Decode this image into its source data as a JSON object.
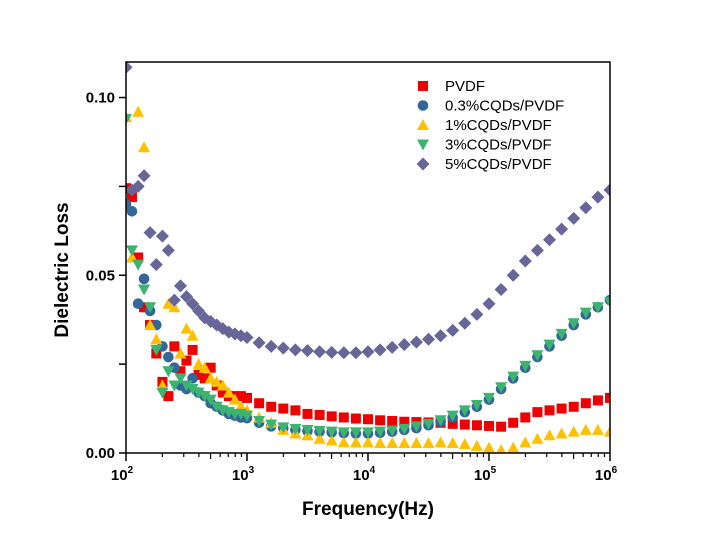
{
  "chart_data": {
    "type": "scatter",
    "title": "",
    "xlabel": "Frequency(Hz)",
    "ylabel": "Dielectric Loss",
    "xscale": "log",
    "xlim": [
      100,
      1000000
    ],
    "ylim": [
      0,
      0.11
    ],
    "xticks": [
      {
        "value": 100,
        "base": "10",
        "exp": "2"
      },
      {
        "value": 1000,
        "base": "10",
        "exp": "3"
      },
      {
        "value": 10000,
        "base": "10",
        "exp": "4"
      },
      {
        "value": 100000,
        "base": "10",
        "exp": "5"
      },
      {
        "value": 1000000,
        "base": "10",
        "exp": "6"
      }
    ],
    "yticks": [
      {
        "value": 0.0,
        "label": "0.00"
      },
      {
        "value": 0.025,
        "label": ""
      },
      {
        "value": 0.05,
        "label": "0.05"
      },
      {
        "value": 0.075,
        "label": ""
      },
      {
        "value": 0.1,
        "label": "0.10"
      }
    ],
    "legend_position": "top-right",
    "x": [
      100,
      112,
      126,
      141,
      158,
      178,
      200,
      224,
      251,
      282,
      316,
      355,
      398,
      447,
      501,
      562,
      631,
      708,
      794,
      891,
      1000,
      1259,
      1585,
      1995,
      2512,
      3162,
      3981,
      5012,
      6310,
      7943,
      10000,
      12589,
      15849,
      19953,
      25119,
      31623,
      39811,
      50119,
      63096,
      79433,
      100000,
      125893,
      158489,
      199526,
      251189,
      316228,
      398107,
      501187,
      630957,
      794328,
      1000000
    ],
    "series": [
      {
        "name": "PVDF",
        "color": "#ee0000",
        "marker": "square",
        "values": [
          0.0745,
          0.072,
          0.055,
          0.041,
          0.036,
          0.028,
          0.02,
          0.016,
          0.03,
          0.023,
          0.026,
          0.029,
          0.022,
          0.021,
          0.024,
          0.019,
          0.017,
          0.016,
          0.016,
          0.016,
          0.0155,
          0.014,
          0.013,
          0.0125,
          0.012,
          0.011,
          0.0107,
          0.0103,
          0.01,
          0.0097,
          0.0095,
          0.0092,
          0.009,
          0.0088,
          0.0087,
          0.0086,
          0.0085,
          0.0082,
          0.008,
          0.0078,
          0.0076,
          0.0074,
          0.0085,
          0.01,
          0.0115,
          0.012,
          0.0125,
          0.013,
          0.014,
          0.0148,
          0.0155
        ]
      },
      {
        "name": "0.3%CQDs/PVDF",
        "color": "#336699",
        "marker": "circle",
        "values": [
          0.07,
          0.068,
          0.042,
          0.049,
          0.04,
          0.036,
          0.03,
          0.027,
          0.024,
          0.019,
          0.018,
          0.021,
          0.017,
          0.016,
          0.014,
          0.013,
          0.012,
          0.011,
          0.0105,
          0.01,
          0.0098,
          0.0085,
          0.0075,
          0.007,
          0.0065,
          0.0062,
          0.006,
          0.0058,
          0.0056,
          0.0055,
          0.0055,
          0.0057,
          0.006,
          0.0065,
          0.007,
          0.0078,
          0.0088,
          0.01,
          0.0115,
          0.013,
          0.015,
          0.018,
          0.021,
          0.024,
          0.027,
          0.03,
          0.033,
          0.036,
          0.039,
          0.041,
          0.043
        ]
      },
      {
        "name": "1%CQDs/PVDF",
        "color": "#ffc000",
        "marker": "triangle-up",
        "values": [
          0.0945,
          0.055,
          0.096,
          0.086,
          0.036,
          0.032,
          0.019,
          0.042,
          0.041,
          0.028,
          0.035,
          0.033,
          0.025,
          0.024,
          0.021,
          0.02,
          0.019,
          0.017,
          0.015,
          0.013,
          0.012,
          0.01,
          0.0085,
          0.0065,
          0.0055,
          0.005,
          0.004,
          0.0035,
          0.003,
          0.003,
          0.003,
          0.0028,
          0.0028,
          0.0028,
          0.0028,
          0.0028,
          0.003,
          0.0028,
          0.0025,
          0.002,
          0.0015,
          0.0008,
          0.0015,
          0.003,
          0.004,
          0.005,
          0.0055,
          0.006,
          0.0065,
          0.0065,
          0.006
        ]
      },
      {
        "name": "3%CQDs/PVDF",
        "color": "#3cb371",
        "marker": "triangle-down",
        "values": [
          0.094,
          0.057,
          0.053,
          0.046,
          0.041,
          0.029,
          0.017,
          0.023,
          0.019,
          0.021,
          0.019,
          0.018,
          0.017,
          0.016,
          0.015,
          0.013,
          0.012,
          0.0115,
          0.011,
          0.011,
          0.0105,
          0.009,
          0.008,
          0.0072,
          0.0068,
          0.0065,
          0.0062,
          0.006,
          0.0058,
          0.0058,
          0.0058,
          0.006,
          0.0063,
          0.0068,
          0.0075,
          0.0082,
          0.0092,
          0.0105,
          0.012,
          0.0135,
          0.0155,
          0.0185,
          0.0215,
          0.0245,
          0.0275,
          0.0305,
          0.0335,
          0.0365,
          0.0395,
          0.041,
          0.0425
        ]
      },
      {
        "name": "5%CQDs/PVDF",
        "color": "#666699",
        "marker": "diamond",
        "values": [
          0.1085,
          0.074,
          0.075,
          0.078,
          0.062,
          0.053,
          0.061,
          0.057,
          0.043,
          0.047,
          0.044,
          0.042,
          0.04,
          0.038,
          0.037,
          0.036,
          0.035,
          0.034,
          0.0335,
          0.033,
          0.0325,
          0.031,
          0.03,
          0.0295,
          0.029,
          0.0288,
          0.0285,
          0.0283,
          0.0282,
          0.0282,
          0.0285,
          0.029,
          0.0297,
          0.0305,
          0.0312,
          0.032,
          0.033,
          0.0345,
          0.0365,
          0.039,
          0.042,
          0.046,
          0.05,
          0.054,
          0.057,
          0.06,
          0.063,
          0.066,
          0.069,
          0.072,
          0.074
        ]
      }
    ]
  }
}
